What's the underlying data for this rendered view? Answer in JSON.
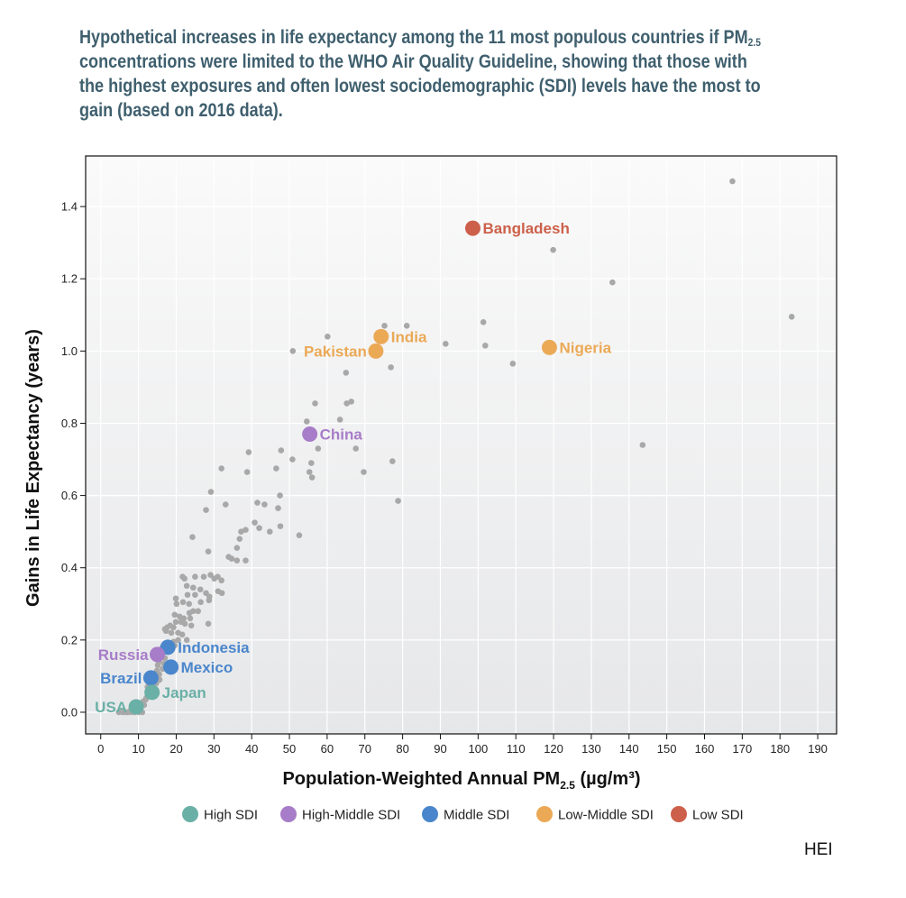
{
  "title": {
    "part1": "Hypothetical increases in life expectancy among the 11 most populous countries if PM",
    "sub": "2.5",
    "part2": " concentrations were limited to the WHO Air Quality Guideline, showing that those with the highest exposures and often lowest sociodemographic (SDI) levels have the most to gain (based on 2016 data)."
  },
  "credit": "HEI",
  "colors": {
    "High SDI": "#6ab0a6",
    "High-Middle SDI": "#a77cc8",
    "Middle SDI": "#4a86cc",
    "Low-Middle SDI": "#eba956",
    "Low SDI": "#cd604a",
    "background_points": "#a8a8a8"
  },
  "chart_data": {
    "type": "scatter",
    "xlabel_main": "Population-Weighted Annual PM",
    "xlabel_sub": "2.5",
    "xlabel_unit": " (µg/m³)",
    "ylabel": "Gains in Life Expectancy (years)",
    "xlim": [
      -4,
      195
    ],
    "ylim": [
      -0.06,
      1.54
    ],
    "xticks": [
      0,
      10,
      20,
      30,
      40,
      50,
      60,
      70,
      80,
      90,
      100,
      110,
      120,
      130,
      140,
      150,
      160,
      170,
      180,
      190
    ],
    "yticks": [
      0.0,
      0.2,
      0.4,
      0.6,
      0.8,
      1.0,
      1.2,
      1.4
    ],
    "grid": true,
    "legend_position": "bottom",
    "legend": [
      "High SDI",
      "High-Middle SDI",
      "Middle SDI",
      "Low-Middle SDI",
      "Low SDI"
    ],
    "highlighted": [
      {
        "name": "Bangladesh",
        "sdi": "Low SDI",
        "x": 98.6,
        "y": 1.34,
        "label_side": "right"
      },
      {
        "name": "India",
        "sdi": "Low-Middle SDI",
        "x": 74.3,
        "y": 1.04,
        "label_side": "right"
      },
      {
        "name": "Pakistan",
        "sdi": "Low-Middle SDI",
        "x": 72.9,
        "y": 1.0,
        "label_side": "left"
      },
      {
        "name": "Nigeria",
        "sdi": "Low-Middle SDI",
        "x": 118.9,
        "y": 1.01,
        "label_side": "right"
      },
      {
        "name": "China",
        "sdi": "High-Middle SDI",
        "x": 55.4,
        "y": 0.77,
        "label_side": "right"
      },
      {
        "name": "Indonesia",
        "sdi": "Middle SDI",
        "x": 17.8,
        "y": 0.18,
        "label_side": "right"
      },
      {
        "name": "Russia",
        "sdi": "High-Middle SDI",
        "x": 15.0,
        "y": 0.16,
        "label_side": "left"
      },
      {
        "name": "Mexico",
        "sdi": "Middle SDI",
        "x": 18.6,
        "y": 0.125,
        "label_side": "right"
      },
      {
        "name": "Brazil",
        "sdi": "Middle SDI",
        "x": 13.3,
        "y": 0.095,
        "label_side": "left"
      },
      {
        "name": "Japan",
        "sdi": "High SDI",
        "x": 13.6,
        "y": 0.055,
        "label_side": "right"
      },
      {
        "name": "USA",
        "sdi": "High SDI",
        "x": 9.4,
        "y": 0.015,
        "label_side": "left"
      }
    ],
    "other_countries": [
      [
        167.4,
        1.47
      ],
      [
        119.9,
        1.28
      ],
      [
        135.6,
        1.19
      ],
      [
        183.1,
        1.095
      ],
      [
        101.4,
        1.08
      ],
      [
        101.9,
        1.015
      ],
      [
        91.4,
        1.02
      ],
      [
        109.2,
        0.965
      ],
      [
        143.6,
        0.74
      ],
      [
        81.1,
        1.07
      ],
      [
        75.2,
        1.07
      ],
      [
        60.1,
        1.04
      ],
      [
        50.9,
        1.0
      ],
      [
        76.9,
        0.955
      ],
      [
        65.0,
        0.94
      ],
      [
        56.8,
        0.855
      ],
      [
        65.2,
        0.855
      ],
      [
        66.4,
        0.86
      ],
      [
        63.4,
        0.81
      ],
      [
        54.6,
        0.805
      ],
      [
        57.6,
        0.73
      ],
      [
        67.6,
        0.73
      ],
      [
        47.8,
        0.725
      ],
      [
        39.2,
        0.72
      ],
      [
        50.8,
        0.7
      ],
      [
        55.8,
        0.69
      ],
      [
        77.3,
        0.695
      ],
      [
        32.0,
        0.675
      ],
      [
        38.8,
        0.665
      ],
      [
        46.5,
        0.675
      ],
      [
        55.3,
        0.665
      ],
      [
        56.0,
        0.65
      ],
      [
        69.7,
        0.665
      ],
      [
        47.5,
        0.6
      ],
      [
        29.2,
        0.61
      ],
      [
        33.1,
        0.575
      ],
      [
        41.5,
        0.58
      ],
      [
        43.4,
        0.575
      ],
      [
        47.0,
        0.565
      ],
      [
        78.8,
        0.585
      ],
      [
        27.9,
        0.56
      ],
      [
        40.8,
        0.525
      ],
      [
        42.0,
        0.51
      ],
      [
        44.8,
        0.5
      ],
      [
        47.6,
        0.515
      ],
      [
        52.6,
        0.49
      ],
      [
        37.2,
        0.5
      ],
      [
        38.4,
        0.505
      ],
      [
        36.8,
        0.48
      ],
      [
        24.3,
        0.485
      ],
      [
        28.5,
        0.445
      ],
      [
        36.1,
        0.455
      ],
      [
        33.9,
        0.43
      ],
      [
        34.7,
        0.425
      ],
      [
        36.1,
        0.42
      ],
      [
        38.4,
        0.42
      ],
      [
        21.7,
        0.375
      ],
      [
        22.2,
        0.37
      ],
      [
        25.0,
        0.375
      ],
      [
        27.3,
        0.375
      ],
      [
        29.1,
        0.38
      ],
      [
        30.1,
        0.37
      ],
      [
        31.0,
        0.375
      ],
      [
        32.0,
        0.365
      ],
      [
        22.8,
        0.35
      ],
      [
        24.5,
        0.345
      ],
      [
        26.4,
        0.34
      ],
      [
        27.9,
        0.33
      ],
      [
        31.1,
        0.335
      ],
      [
        32.1,
        0.33
      ],
      [
        23.0,
        0.325
      ],
      [
        25.0,
        0.325
      ],
      [
        28.8,
        0.32
      ],
      [
        19.9,
        0.315
      ],
      [
        20.1,
        0.3
      ],
      [
        21.8,
        0.305
      ],
      [
        23.4,
        0.3
      ],
      [
        26.5,
        0.305
      ],
      [
        28.7,
        0.31
      ],
      [
        24.5,
        0.28
      ],
      [
        25.8,
        0.28
      ],
      [
        23.5,
        0.275
      ],
      [
        19.6,
        0.27
      ],
      [
        20.9,
        0.265
      ],
      [
        22.0,
        0.26
      ],
      [
        23.7,
        0.26
      ],
      [
        19.9,
        0.25
      ],
      [
        21.3,
        0.25
      ],
      [
        22.3,
        0.245
      ],
      [
        18.4,
        0.24
      ],
      [
        17.6,
        0.235
      ],
      [
        19.3,
        0.235
      ],
      [
        17.0,
        0.23
      ],
      [
        17.3,
        0.225
      ],
      [
        18.7,
        0.22
      ],
      [
        20.5,
        0.22
      ],
      [
        21.6,
        0.215
      ],
      [
        22.8,
        0.2
      ],
      [
        20.5,
        0.2
      ],
      [
        19.3,
        0.195
      ],
      [
        17.8,
        0.19
      ],
      [
        19.6,
        0.185
      ],
      [
        16.4,
        0.18
      ],
      [
        16.6,
        0.17
      ],
      [
        15.7,
        0.155
      ],
      [
        17.0,
        0.15
      ],
      [
        15.3,
        0.14
      ],
      [
        16.7,
        0.135
      ],
      [
        15.1,
        0.13
      ],
      [
        16.4,
        0.12
      ],
      [
        14.9,
        0.115
      ],
      [
        15.5,
        0.105
      ],
      [
        14.6,
        0.1
      ],
      [
        15.6,
        0.09
      ],
      [
        14.7,
        0.08
      ],
      [
        13.6,
        0.075
      ],
      [
        12.4,
        0.07
      ],
      [
        12.7,
        0.05
      ],
      [
        12.1,
        0.04
      ],
      [
        11.3,
        0.03
      ],
      [
        11.9,
        0.035
      ],
      [
        11.5,
        0.02
      ],
      [
        10.7,
        0.015
      ],
      [
        8.1,
        0.01
      ],
      [
        6.6,
        0.0
      ],
      [
        5.8,
        0.0
      ],
      [
        4.8,
        0.0
      ],
      [
        7.2,
        0.0
      ],
      [
        8.1,
        0.0
      ],
      [
        9.0,
        0.0
      ],
      [
        10.1,
        0.0
      ],
      [
        11.0,
        0.0
      ],
      [
        24.0,
        0.24
      ],
      [
        28.5,
        0.245
      ]
    ]
  }
}
